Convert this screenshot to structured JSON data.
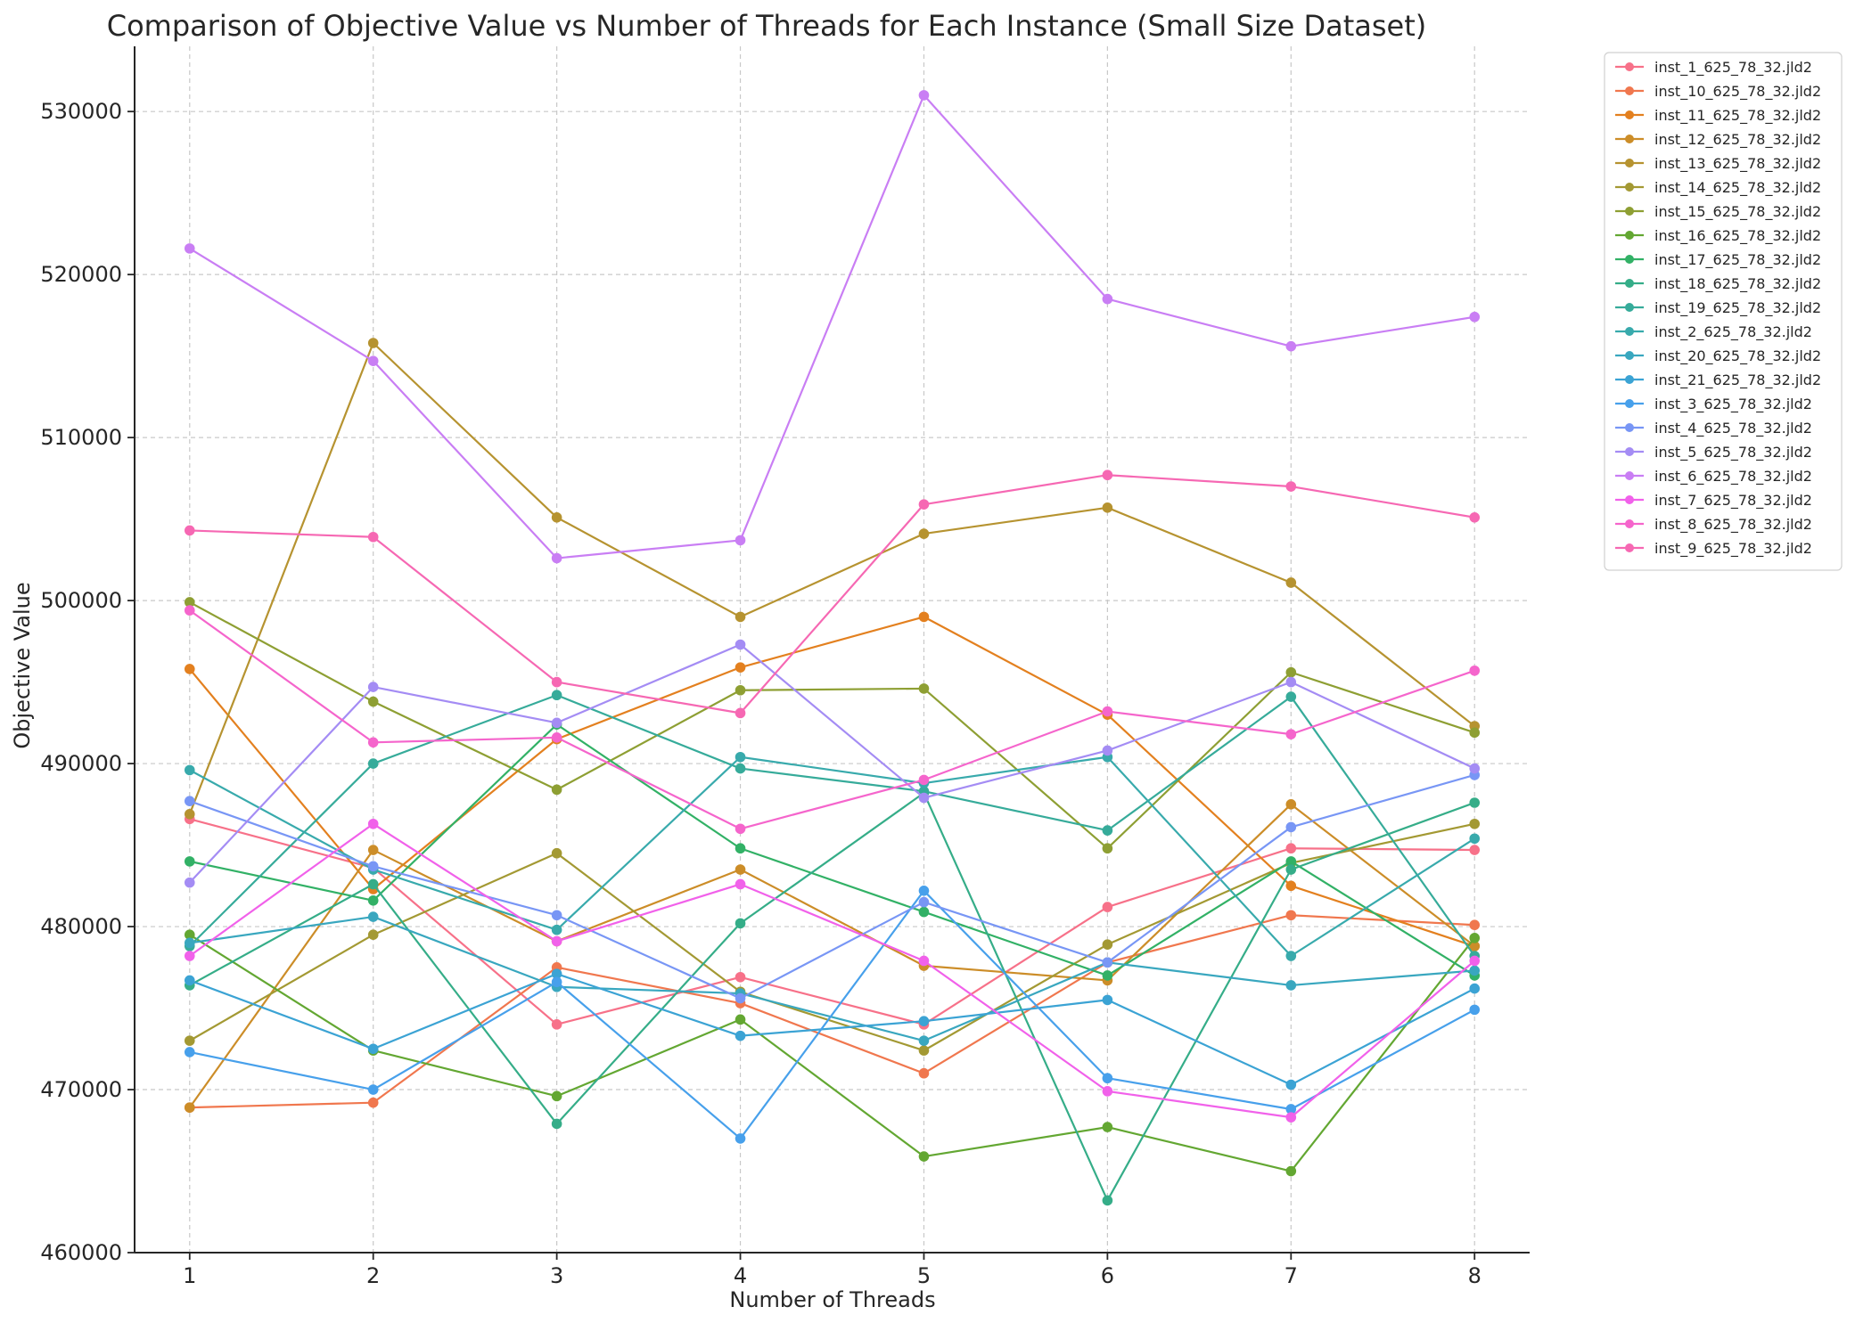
{
  "chart_data": {
    "type": "line",
    "title": "Comparison of Objective Value vs Number of Threads for Each Instance (Small Size Dataset)",
    "xlabel": "Number of Threads",
    "ylabel": "Objective Value",
    "x": [
      1,
      2,
      3,
      4,
      5,
      6,
      7,
      8
    ],
    "xlim": [
      0.7,
      8.3
    ],
    "ylim": [
      460000,
      534000
    ],
    "xticks": [
      1,
      2,
      3,
      4,
      5,
      6,
      7,
      8
    ],
    "yticks": [
      460000,
      470000,
      480000,
      490000,
      500000,
      510000,
      520000,
      530000
    ],
    "grid": true,
    "legend_position": "outside-right",
    "series": [
      {
        "name": "inst_1_625_78_32.jld2",
        "color": "#f77189",
        "values": [
          486600,
          483600,
          474000,
          476900,
          474000,
          481200,
          484800,
          484700
        ]
      },
      {
        "name": "inst_10_625_78_32.jld2",
        "color": "#f0774e",
        "values": [
          468900,
          469200,
          477500,
          475300,
          471000,
          477800,
          480700,
          480100
        ]
      },
      {
        "name": "inst_11_625_78_32.jld2",
        "color": "#e3801f",
        "values": [
          495800,
          482300,
          491500,
          495900,
          499000,
          493000,
          482500,
          478800
        ]
      },
      {
        "name": "inst_12_625_78_32.jld2",
        "color": "#cc8d28",
        "values": [
          468900,
          484700,
          479100,
          483500,
          477600,
          476700,
          487500,
          478800
        ]
      },
      {
        "name": "inst_13_625_78_32.jld2",
        "color": "#b69330",
        "values": [
          486900,
          515800,
          505100,
          499000,
          504100,
          505700,
          501100,
          492300
        ]
      },
      {
        "name": "inst_14_625_78_32.jld2",
        "color": "#a39933",
        "values": [
          473000,
          479500,
          484500,
          476000,
          472400,
          478900,
          483900,
          486300
        ]
      },
      {
        "name": "inst_15_625_78_32.jld2",
        "color": "#8e9f33",
        "values": [
          499900,
          493800,
          488400,
          494500,
          494600,
          484800,
          495600,
          491900
        ]
      },
      {
        "name": "inst_16_625_78_32.jld2",
        "color": "#63a732",
        "values": [
          479500,
          472400,
          469600,
          474300,
          465900,
          467700,
          465000,
          479300
        ]
      },
      {
        "name": "inst_17_625_78_32.jld2",
        "color": "#32b166",
        "values": [
          484000,
          481600,
          492400,
          484800,
          480900,
          477000,
          484000,
          477000
        ]
      },
      {
        "name": "inst_18_625_78_32.jld2",
        "color": "#35ad88",
        "values": [
          476400,
          482600,
          467900,
          480200,
          488200,
          463200,
          483500,
          487600
        ]
      },
      {
        "name": "inst_19_625_78_32.jld2",
        "color": "#36ab9a",
        "values": [
          478800,
          490000,
          494200,
          489700,
          488300,
          485900,
          494100,
          478200
        ]
      },
      {
        "name": "inst_2_625_78_32.jld2",
        "color": "#38aaac",
        "values": [
          489600,
          483500,
          479800,
          490400,
          488800,
          490400,
          478200,
          485400
        ]
      },
      {
        "name": "inst_20_625_78_32.jld2",
        "color": "#39a7bf",
        "values": [
          479000,
          480600,
          476300,
          475900,
          473000,
          477800,
          476400,
          477300
        ]
      },
      {
        "name": "inst_21_625_78_32.jld2",
        "color": "#3ba3d4",
        "values": [
          476700,
          472500,
          477100,
          473300,
          474200,
          475500,
          470300,
          476200
        ]
      },
      {
        "name": "inst_3_625_78_32.jld2",
        "color": "#47a0eb",
        "values": [
          472300,
          470000,
          476600,
          467000,
          482200,
          470700,
          468800,
          474900
        ]
      },
      {
        "name": "inst_4_625_78_32.jld2",
        "color": "#7896f5",
        "values": [
          487700,
          483700,
          480700,
          475600,
          481500,
          477800,
          486100,
          489300
        ]
      },
      {
        "name": "inst_5_625_78_32.jld2",
        "color": "#a48cf4",
        "values": [
          482700,
          494700,
          492500,
          497300,
          487900,
          490800,
          495000,
          489700
        ]
      },
      {
        "name": "inst_6_625_78_32.jld2",
        "color": "#c97ef4",
        "values": [
          521600,
          514700,
          502600,
          503700,
          531000,
          518500,
          515600,
          517400
        ]
      },
      {
        "name": "inst_7_625_78_32.jld2",
        "color": "#f161ea",
        "values": [
          478200,
          486300,
          479100,
          482600,
          477900,
          469900,
          468300,
          477900
        ]
      },
      {
        "name": "inst_8_625_78_32.jld2",
        "color": "#f565cc",
        "values": [
          499400,
          491300,
          491600,
          486000,
          489000,
          493200,
          491800,
          495700
        ]
      },
      {
        "name": "inst_9_625_78_32.jld2",
        "color": "#f668b3",
        "values": [
          504300,
          503900,
          495000,
          493100,
          505900,
          507700,
          507000,
          505100
        ]
      }
    ]
  }
}
